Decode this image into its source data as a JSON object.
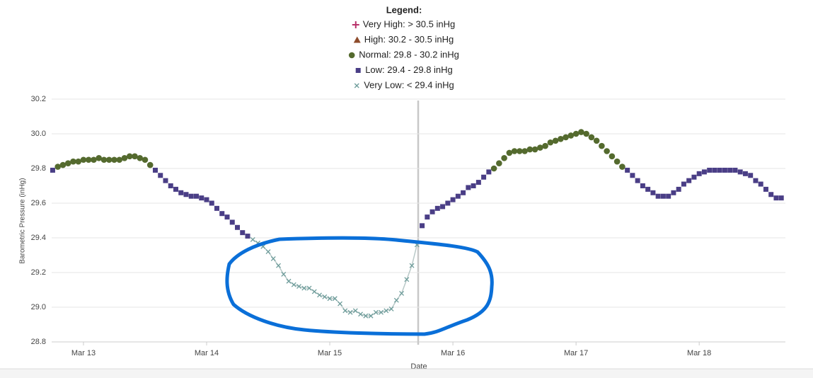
{
  "chart_data": {
    "type": "scatter",
    "legend_title": "Legend:",
    "xlabel": "Date",
    "ylabel": "Barometric Pressure (inHg)",
    "xlim": [
      -6.2,
      136.8
    ],
    "xticks": [
      {
        "value": 0,
        "label": "Mar 13"
      },
      {
        "value": 24,
        "label": "Mar 14"
      },
      {
        "value": 48,
        "label": "Mar 15"
      },
      {
        "value": 72,
        "label": "Mar 16"
      },
      {
        "value": 96,
        "label": "Mar 17"
      },
      {
        "value": 120,
        "label": "Mar 18"
      }
    ],
    "ylim": [
      28.8,
      30.2
    ],
    "yticks": [
      28.8,
      {
        "value": 29,
        "label": "29.0"
      },
      29.2,
      29.4,
      29.6,
      29.8,
      {
        "value": 30,
        "label": "30.0"
      },
      30.2
    ],
    "grid": true,
    "series": [
      {
        "name": "Very High: > 30.5 inHg",
        "color": "#b8326a",
        "marker": "plus",
        "x": [],
        "values": []
      },
      {
        "name": "High: 30.2 - 30.5 inHg",
        "color": "#8e4c2c",
        "marker": "triangle",
        "x": [],
        "values": []
      },
      {
        "name": "Normal: 29.8 - 30.2 inHg",
        "color": "#546a2e",
        "marker": "circle",
        "x": [
          -5,
          -4,
          -3,
          -2,
          -1,
          0,
          1,
          2,
          3,
          4,
          5,
          6,
          7,
          8,
          9,
          10,
          11,
          12,
          13,
          80,
          81,
          82,
          83,
          84,
          85,
          86,
          87,
          88,
          89,
          90,
          91,
          92,
          93,
          94,
          95,
          96,
          97,
          98,
          99,
          100,
          101,
          102,
          103,
          104,
          105
        ],
        "values": [
          29.81,
          29.82,
          29.83,
          29.84,
          29.84,
          29.85,
          29.85,
          29.85,
          29.86,
          29.85,
          29.85,
          29.85,
          29.85,
          29.86,
          29.87,
          29.87,
          29.86,
          29.85,
          29.82,
          29.8,
          29.83,
          29.86,
          29.89,
          29.9,
          29.9,
          29.9,
          29.91,
          29.91,
          29.92,
          29.93,
          29.95,
          29.96,
          29.97,
          29.98,
          29.99,
          30.0,
          30.01,
          30.0,
          29.98,
          29.96,
          29.93,
          29.9,
          29.87,
          29.84,
          29.81
        ]
      },
      {
        "name": "Low: 29.4 - 29.8 inHg",
        "color": "#4a3e86",
        "marker": "square",
        "x": [
          -6,
          14,
          15,
          16,
          17,
          18,
          19,
          20,
          21,
          22,
          23,
          24,
          25,
          26,
          27,
          28,
          29,
          30,
          31,
          32,
          66,
          67,
          68,
          69,
          70,
          71,
          72,
          73,
          74,
          75,
          76,
          77,
          78,
          79,
          106,
          107,
          108,
          109,
          110,
          111,
          112,
          113,
          114,
          115,
          116,
          117,
          118,
          119,
          120,
          121,
          122,
          123,
          124,
          125,
          126,
          127,
          128,
          129,
          130,
          131,
          132,
          133,
          134,
          135,
          136
        ],
        "values": [
          29.79,
          29.79,
          29.76,
          29.73,
          29.7,
          29.68,
          29.66,
          29.65,
          29.64,
          29.64,
          29.63,
          29.62,
          29.6,
          29.57,
          29.54,
          29.52,
          29.49,
          29.46,
          29.43,
          29.41,
          29.47,
          29.52,
          29.55,
          29.57,
          29.58,
          29.6,
          29.62,
          29.64,
          29.66,
          29.69,
          29.7,
          29.72,
          29.75,
          29.78,
          29.79,
          29.76,
          29.73,
          29.7,
          29.68,
          29.66,
          29.64,
          29.64,
          29.64,
          29.66,
          29.68,
          29.71,
          29.73,
          29.75,
          29.77,
          29.78,
          29.79,
          29.79,
          29.79,
          29.79,
          29.79,
          29.79,
          29.78,
          29.77,
          29.76,
          29.73,
          29.71,
          29.68,
          29.65,
          29.63,
          29.63
        ]
      },
      {
        "name": "Very Low: < 29.4 inHg",
        "color": "#6d9c9a",
        "marker": "x",
        "line": true,
        "x": [
          33,
          34,
          35,
          36,
          37,
          38,
          39,
          40,
          41,
          42,
          43,
          44,
          45,
          46,
          47,
          48,
          49,
          50,
          51,
          52,
          53,
          54,
          55,
          56,
          57,
          58,
          59,
          60,
          61,
          62,
          63,
          64,
          65
        ],
        "values": [
          29.39,
          29.37,
          29.35,
          29.32,
          29.28,
          29.24,
          29.19,
          29.15,
          29.13,
          29.12,
          29.11,
          29.11,
          29.09,
          29.07,
          29.06,
          29.05,
          29.05,
          29.02,
          28.98,
          28.97,
          28.98,
          28.96,
          28.95,
          28.95,
          28.97,
          28.97,
          28.98,
          28.99,
          29.04,
          29.08,
          29.16,
          29.24,
          29.36
        ]
      }
    ]
  }
}
